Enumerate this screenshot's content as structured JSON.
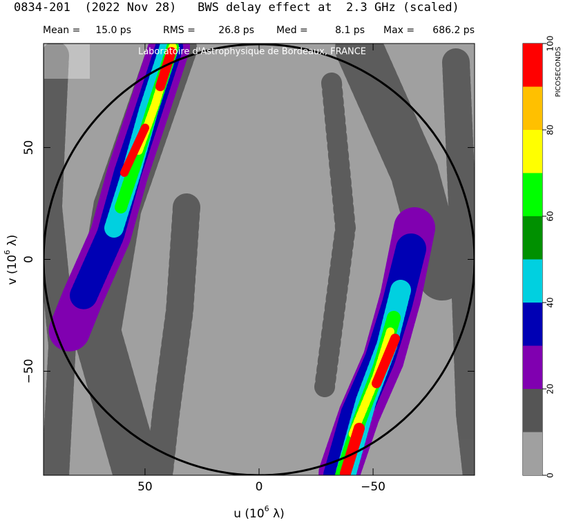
{
  "chart_data": {
    "type": "heatmap",
    "title": "0834-201  (2022 Nov 28)   BWS delay effect at  2.3 GHz (scaled)",
    "stats": [
      {
        "label": "Mean =",
        "text": "15.0 ps"
      },
      {
        "label": "RMS =",
        "text": "26.8 ps"
      },
      {
        "label": "Med =",
        "text": "8.1 ps"
      },
      {
        "label": "Max =",
        "text": "686.2 ps"
      }
    ],
    "xlabel": [
      "u  (10",
      "6",
      " λ)"
    ],
    "ylabel": [
      "v  (10",
      "6",
      " λ)"
    ],
    "xlim": [
      94.5,
      -94.5
    ],
    "ylim": [
      -96.5,
      96.5
    ],
    "xticks": [
      50,
      0,
      {
        "value": -50,
        "label": "−50"
      }
    ],
    "yticks": [
      {
        "value": -50,
        "label": "−50"
      },
      0,
      50
    ],
    "watermark": "Laboratoire d'Astrophysique de Bordeaux, FRANCE",
    "colorbar": {
      "label": "PICOSECONDS",
      "bins": [
        0,
        10,
        20,
        30,
        40,
        50,
        60,
        70,
        80,
        90,
        100
      ],
      "colors": [
        "#a0a0a0",
        "#555555",
        "#8000b0",
        "#0000b4",
        "#00d0e0",
        "#009000",
        "#00ff00",
        "#ffff00",
        "#ffc000",
        "#ff0000"
      ],
      "ticks": [
        0,
        20,
        40,
        60,
        80,
        100
      ]
    }
  }
}
